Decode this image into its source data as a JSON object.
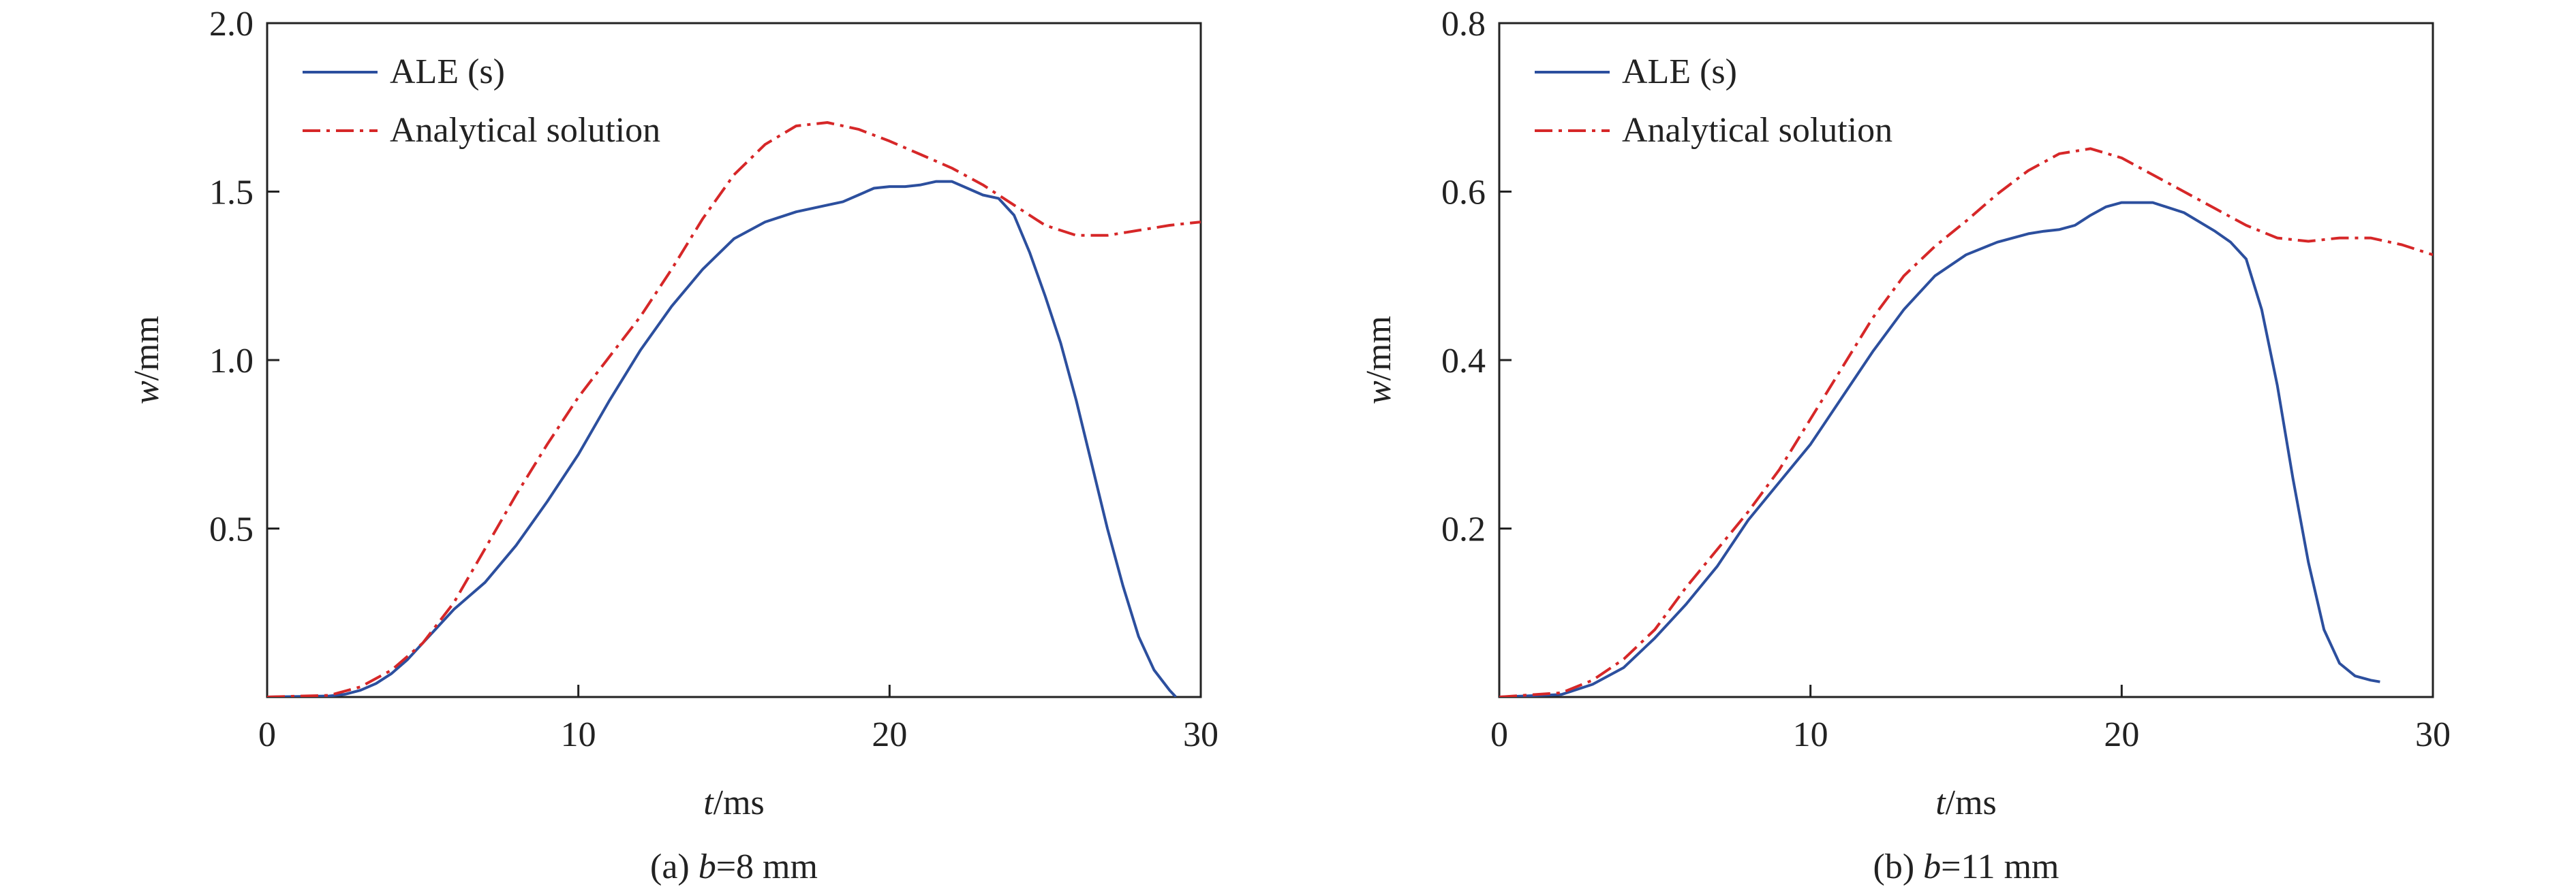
{
  "chart_data": [
    {
      "type": "line",
      "panel_caption_prefix": "(a) ",
      "panel_caption_var": "b",
      "panel_caption_rest": "=8 mm",
      "xlabel_var": "t",
      "xlabel_unit": "/ms",
      "ylabel_var": "w",
      "ylabel_unit": "/mm",
      "xlim": [
        0,
        30
      ],
      "ylim": [
        0,
        2.0
      ],
      "xticks": [
        "0",
        "10",
        "20",
        "30"
      ],
      "yticks": [
        "0.5",
        "1.0",
        "1.5",
        "2.0"
      ],
      "legend_position": "top-left",
      "grid": false,
      "series": [
        {
          "name": "ALE (s)",
          "color": "#2c4f9e",
          "style": "solid",
          "x": [
            0,
            2,
            2.5,
            3,
            3.5,
            4,
            4.5,
            5,
            5.5,
            6,
            6.5,
            7,
            8,
            9,
            10,
            11,
            12,
            13,
            14,
            15,
            16,
            17,
            18,
            18.5,
            19,
            19.5,
            20,
            20.5,
            21,
            21.5,
            22,
            22.5,
            23,
            23.5,
            24,
            24.5,
            25,
            25.5,
            26,
            26.5,
            27,
            27.5,
            28,
            28.5,
            29,
            29.2
          ],
          "y": [
            0,
            0.003,
            0.008,
            0.02,
            0.04,
            0.07,
            0.11,
            0.16,
            0.21,
            0.26,
            0.3,
            0.34,
            0.45,
            0.58,
            0.72,
            0.88,
            1.03,
            1.16,
            1.27,
            1.36,
            1.41,
            1.44,
            1.46,
            1.47,
            1.49,
            1.51,
            1.515,
            1.515,
            1.52,
            1.53,
            1.53,
            1.51,
            1.49,
            1.48,
            1.43,
            1.32,
            1.19,
            1.05,
            0.88,
            0.69,
            0.5,
            0.33,
            0.18,
            0.08,
            0.02,
            0
          ]
        },
        {
          "name": "Analytical solution",
          "color": "#d62728",
          "style": "dashdot",
          "x": [
            0,
            2,
            3,
            4,
            5,
            6,
            7,
            8,
            9,
            10,
            11,
            12,
            13,
            14,
            15,
            16,
            17,
            18,
            19,
            20,
            21,
            22,
            23,
            24,
            25,
            26,
            27,
            28,
            29,
            30
          ],
          "y": [
            0,
            0.005,
            0.03,
            0.08,
            0.16,
            0.28,
            0.44,
            0.6,
            0.75,
            0.89,
            1.01,
            1.13,
            1.27,
            1.42,
            1.55,
            1.64,
            1.695,
            1.705,
            1.685,
            1.65,
            1.61,
            1.57,
            1.52,
            1.46,
            1.4,
            1.37,
            1.37,
            1.385,
            1.4,
            1.41
          ]
        }
      ]
    },
    {
      "type": "line",
      "panel_caption_prefix": "(b) ",
      "panel_caption_var": "b",
      "panel_caption_rest": "=11 mm",
      "xlabel_var": "t",
      "xlabel_unit": "/ms",
      "ylabel_var": "w",
      "ylabel_unit": "/mm",
      "xlim": [
        0,
        30
      ],
      "ylim": [
        0,
        0.8
      ],
      "xticks": [
        "0",
        "10",
        "20",
        "30"
      ],
      "yticks": [
        "0.2",
        "0.4",
        "0.6",
        "0.8"
      ],
      "legend_position": "top-left",
      "grid": false,
      "series": [
        {
          "name": "ALE (s)",
          "color": "#2c4f9e",
          "style": "solid",
          "x": [
            0,
            2,
            3,
            4,
            5,
            6,
            7,
            8,
            9,
            10,
            11,
            12,
            13,
            14,
            15,
            16,
            17,
            17.5,
            18,
            18.5,
            19,
            19.5,
            20,
            21,
            22,
            23,
            23.5,
            24,
            24.5,
            25,
            25.5,
            26,
            26.5,
            27,
            27.5,
            28,
            28.3
          ],
          "y": [
            0,
            0.003,
            0.015,
            0.035,
            0.07,
            0.11,
            0.155,
            0.21,
            0.255,
            0.3,
            0.355,
            0.41,
            0.46,
            0.5,
            0.525,
            0.54,
            0.55,
            0.553,
            0.555,
            0.56,
            0.572,
            0.582,
            0.587,
            0.587,
            0.575,
            0.553,
            0.54,
            0.52,
            0.46,
            0.37,
            0.26,
            0.16,
            0.08,
            0.04,
            0.025,
            0.02,
            0.018
          ]
        },
        {
          "name": "Analytical solution",
          "color": "#d62728",
          "style": "dashdot",
          "x": [
            0,
            2,
            3,
            4,
            5,
            6,
            7,
            8,
            9,
            10,
            11,
            12,
            13,
            14,
            15,
            16,
            17,
            18,
            19,
            20,
            21,
            22,
            23,
            24,
            25,
            26,
            27,
            28,
            29,
            30
          ],
          "y": [
            0,
            0.005,
            0.02,
            0.045,
            0.08,
            0.13,
            0.175,
            0.22,
            0.27,
            0.33,
            0.39,
            0.45,
            0.5,
            0.535,
            0.565,
            0.597,
            0.625,
            0.645,
            0.651,
            0.64,
            0.62,
            0.6,
            0.58,
            0.56,
            0.545,
            0.541,
            0.545,
            0.545,
            0.537,
            0.525
          ]
        }
      ]
    }
  ]
}
